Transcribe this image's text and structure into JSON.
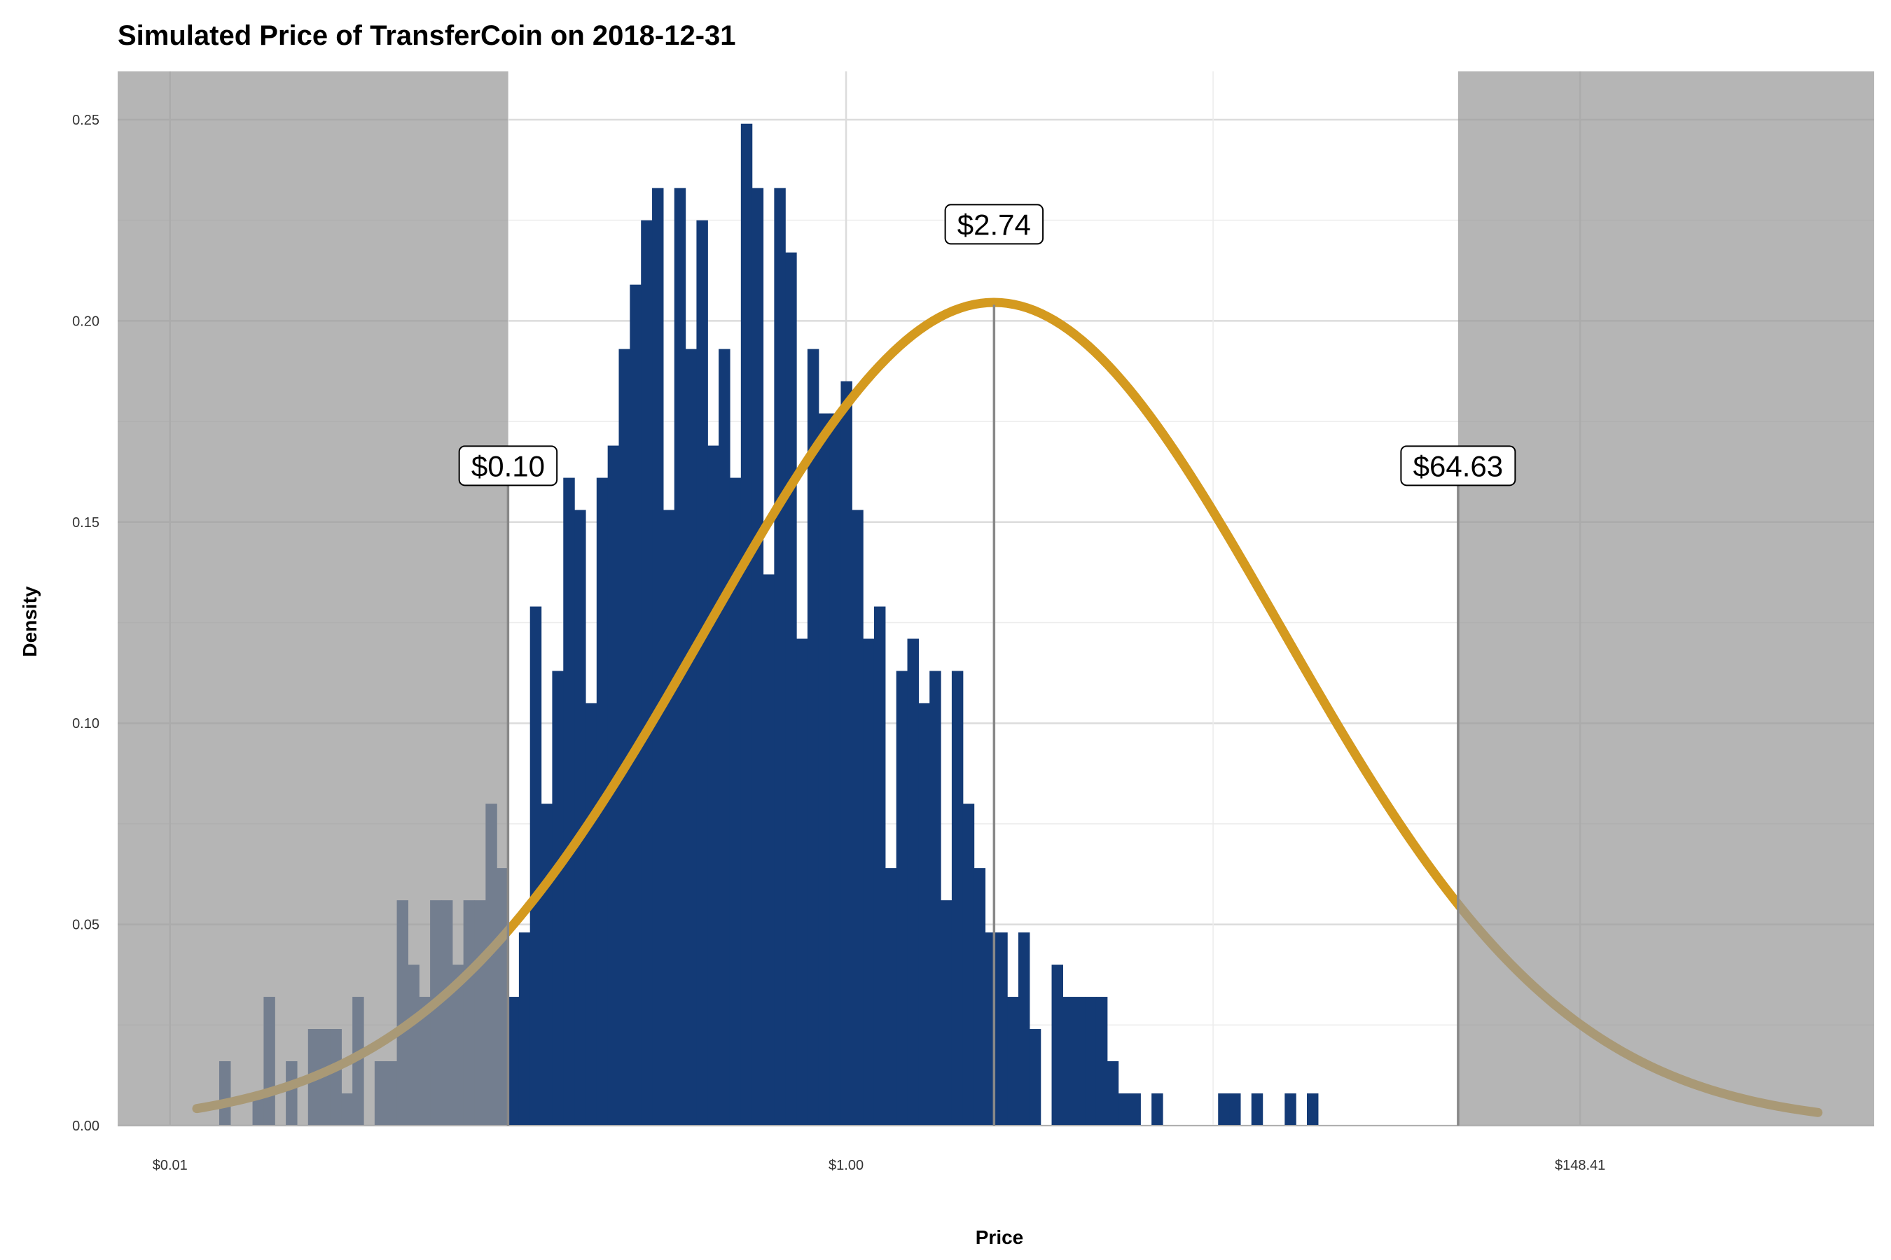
{
  "chart_data": {
    "type": "bar",
    "title": "Simulated Price of TransferCoin on 2018-12-31",
    "xlabel": "Price",
    "ylabel": "Density",
    "x_scale": "log",
    "xlim": [
      0.007,
      1100
    ],
    "ylim": [
      0,
      0.25
    ],
    "x_ticks": [
      {
        "value": 0.01,
        "label": "$0.01"
      },
      {
        "value": 1.0,
        "label": "$1.00"
      },
      {
        "value": 148.41,
        "label": "$148.41"
      }
    ],
    "y_ticks": [
      {
        "value": 0.0,
        "label": "0.00"
      },
      {
        "value": 0.05,
        "label": "0.05"
      },
      {
        "value": 0.1,
        "label": "0.10"
      },
      {
        "value": 0.15,
        "label": "0.15"
      },
      {
        "value": 0.2,
        "label": "0.20"
      },
      {
        "value": 0.25,
        "label": "0.25"
      }
    ],
    "histogram": {
      "log_x_start": -4.27,
      "log_bin_width": 0.0756,
      "densities": [
        0.016,
        0.0,
        0.0,
        0.008,
        0.032,
        0.0,
        0.016,
        0.0,
        0.024,
        0.024,
        0.024,
        0.008,
        0.032,
        0.0,
        0.016,
        0.016,
        0.056,
        0.04,
        0.032,
        0.056,
        0.056,
        0.04,
        0.056,
        0.056,
        0.08,
        0.064,
        0.032,
        0.048,
        0.129,
        0.08,
        0.113,
        0.161,
        0.153,
        0.105,
        0.161,
        0.169,
        0.193,
        0.209,
        0.225,
        0.233,
        0.153,
        0.233,
        0.193,
        0.225,
        0.169,
        0.193,
        0.161,
        0.249,
        0.233,
        0.137,
        0.233,
        0.217,
        0.121,
        0.193,
        0.177,
        0.177,
        0.185,
        0.153,
        0.121,
        0.129,
        0.064,
        0.113,
        0.121,
        0.105,
        0.113,
        0.056,
        0.113,
        0.08,
        0.064,
        0.048,
        0.048,
        0.032,
        0.048,
        0.024,
        0.0,
        0.04,
        0.032,
        0.032,
        0.032,
        0.032,
        0.016,
        0.008,
        0.008,
        0.0,
        0.008,
        0.0,
        0.0,
        0.0,
        0.0,
        0.0,
        0.008,
        0.008,
        0.0,
        0.008,
        0.0,
        0.0,
        0.008,
        0.0,
        0.008
      ],
      "color": "#133a76"
    },
    "density_curve": {
      "mean_log": 1.008,
      "sd_log": 1.95,
      "x_range": [
        0.012,
        750
      ],
      "color": "#d49a1f"
    },
    "shaded_regions": [
      {
        "from": 0.007,
        "to": 0.1,
        "color": "#999999"
      },
      {
        "from": 64.63,
        "to": 1100,
        "color": "#999999"
      }
    ],
    "annotations": [
      {
        "x": 0.1,
        "y_line_top": 0.162,
        "y_label": 0.164,
        "text": "$0.10"
      },
      {
        "x": 2.74,
        "y_line_top": 0.204,
        "y_label": 0.224,
        "text": "$2.74"
      },
      {
        "x": 64.63,
        "y_line_top": 0.162,
        "y_label": 0.164,
        "text": "$64.63"
      }
    ]
  }
}
